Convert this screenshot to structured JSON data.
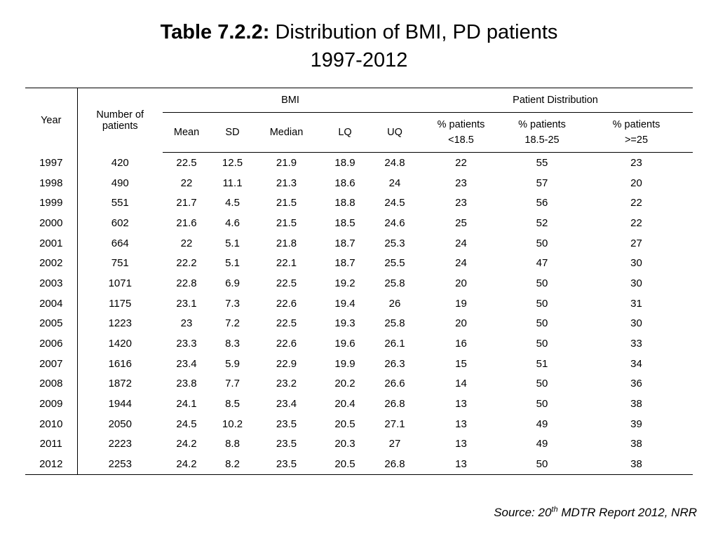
{
  "title": {
    "bold": "Table 7.2.2:",
    "rest": "Distribution of BMI, PD patients",
    "line2": "1997-2012"
  },
  "headers": {
    "year": "Year",
    "patients_line1": "Number of",
    "patients_line2": "patients",
    "bmi_group": "BMI",
    "dist_group": "Patient Distribution",
    "mean": "Mean",
    "sd": "SD",
    "median": "Median",
    "lq": "LQ",
    "uq": "UQ",
    "p1_line1": "% patients",
    "p1_line2": "<18.5",
    "p2_line1": "% patients",
    "p2_line2": "18.5-25",
    "p3_line1": "% patients",
    "p3_line2": ">=25"
  },
  "rows": [
    [
      "1997",
      "420",
      "22.5",
      "12.5",
      "21.9",
      "18.9",
      "24.8",
      "22",
      "55",
      "23"
    ],
    [
      "1998",
      "490",
      "22",
      "11.1",
      "21.3",
      "18.6",
      "24",
      "23",
      "57",
      "20"
    ],
    [
      "1999",
      "551",
      "21.7",
      "4.5",
      "21.5",
      "18.8",
      "24.5",
      "23",
      "56",
      "22"
    ],
    [
      "2000",
      "602",
      "21.6",
      "4.6",
      "21.5",
      "18.5",
      "24.6",
      "25",
      "52",
      "22"
    ],
    [
      "2001",
      "664",
      "22",
      "5.1",
      "21.8",
      "18.7",
      "25.3",
      "24",
      "50",
      "27"
    ],
    [
      "2002",
      "751",
      "22.2",
      "5.1",
      "22.1",
      "18.7",
      "25.5",
      "24",
      "47",
      "30"
    ],
    [
      "2003",
      "1071",
      "22.8",
      "6.9",
      "22.5",
      "19.2",
      "25.8",
      "20",
      "50",
      "30"
    ],
    [
      "2004",
      "1175",
      "23.1",
      "7.3",
      "22.6",
      "19.4",
      "26",
      "19",
      "50",
      "31"
    ],
    [
      "2005",
      "1223",
      "23",
      "7.2",
      "22.5",
      "19.3",
      "25.8",
      "20",
      "50",
      "30"
    ],
    [
      "2006",
      "1420",
      "23.3",
      "8.3",
      "22.6",
      "19.6",
      "26.1",
      "16",
      "50",
      "33"
    ],
    [
      "2007",
      "1616",
      "23.4",
      "5.9",
      "22.9",
      "19.9",
      "26.3",
      "15",
      "51",
      "34"
    ],
    [
      "2008",
      "1872",
      "23.8",
      "7.7",
      "23.2",
      "20.2",
      "26.6",
      "14",
      "50",
      "36"
    ],
    [
      "2009",
      "1944",
      "24.1",
      "8.5",
      "23.4",
      "20.4",
      "26.8",
      "13",
      "50",
      "38"
    ],
    [
      "2010",
      "2050",
      "24.5",
      "10.2",
      "23.5",
      "20.5",
      "27.1",
      "13",
      "49",
      "39"
    ],
    [
      "2011",
      "2223",
      "24.2",
      "8.8",
      "23.5",
      "20.3",
      "27",
      "13",
      "49",
      "38"
    ],
    [
      "2012",
      "2253",
      "24.2",
      "8.2",
      "23.5",
      "20.5",
      "26.8",
      "13",
      "50",
      "38"
    ]
  ],
  "source": {
    "prefix": "Source: 20",
    "sup": "th",
    "suffix": " MDTR Report 2012, NRR"
  }
}
